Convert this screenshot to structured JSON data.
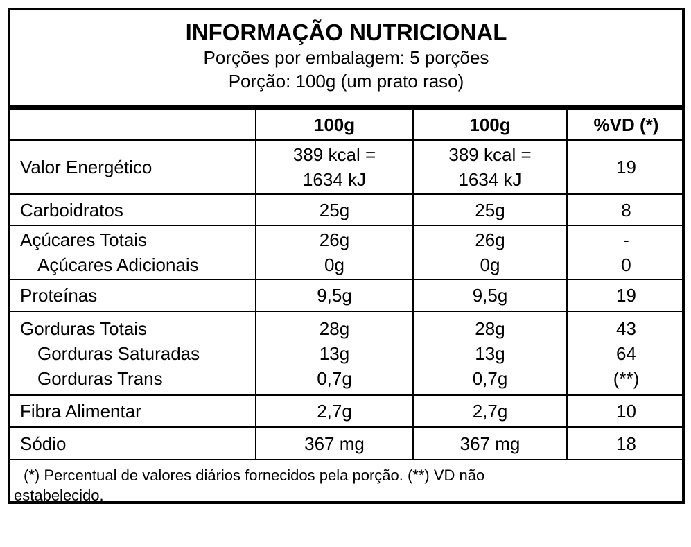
{
  "header": {
    "title": "INFORMAÇÃO NUTRICIONAL",
    "servings_per_package": "Porções por embalagem: 5 porções",
    "serving_size": "Porção: 100g (um prato raso)"
  },
  "columns": [
    "",
    "100g",
    "100g",
    "%VD (*)"
  ],
  "rows": [
    {
      "names": [
        "Valor Energético"
      ],
      "c1": [
        "389 kcal =",
        "1634 kJ"
      ],
      "c2": [
        "389 kcal =",
        "1634 kJ"
      ],
      "vd": [
        "19"
      ]
    },
    {
      "names": [
        "Carboidratos"
      ],
      "c1": [
        "25g"
      ],
      "c2": [
        "25g"
      ],
      "vd": [
        "8"
      ]
    },
    {
      "names": [
        "Açúcares Totais",
        "Açúcares Adicionais"
      ],
      "c1": [
        "26g",
        "0g"
      ],
      "c2": [
        "26g",
        "0g"
      ],
      "vd": [
        "-",
        "0"
      ]
    },
    {
      "names": [
        "Proteínas"
      ],
      "c1": [
        "9,5g"
      ],
      "c2": [
        "9,5g"
      ],
      "vd": [
        "19"
      ]
    },
    {
      "names": [
        "Gorduras Totais",
        "Gorduras Saturadas",
        "Gorduras Trans"
      ],
      "c1": [
        "28g",
        "13g",
        "0,7g"
      ],
      "c2": [
        "28g",
        "13g",
        "0,7g"
      ],
      "vd": [
        "43",
        "64",
        "(**)"
      ]
    },
    {
      "names": [
        "Fibra Alimentar"
      ],
      "c1": [
        "2,7g"
      ],
      "c2": [
        "2,7g"
      ],
      "vd": [
        "10"
      ]
    },
    {
      "names": [
        "Sódio"
      ],
      "c1": [
        "367 mg"
      ],
      "c2": [
        "367 mg"
      ],
      "vd": [
        "18"
      ]
    }
  ],
  "footer": {
    "line1": "(*) Percentual de valores diários fornecidos pela porção. (**) VD não",
    "line2": "estabelecido."
  }
}
